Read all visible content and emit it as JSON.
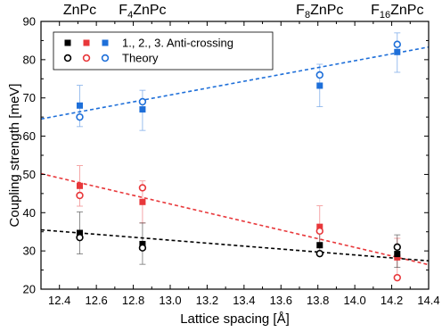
{
  "chart_data": {
    "type": "scatter",
    "xlabel": "Lattice spacing [Å]",
    "ylabel": "Coupling strength [meV]",
    "xlim": [
      12.3,
      14.4
    ],
    "ylim": [
      20,
      90
    ],
    "x_ticks": [
      "12.4",
      "12.6",
      "12.8",
      "13.0",
      "13.2",
      "13.4",
      "13.6",
      "13.8",
      "14.0",
      "14.2",
      "14.4"
    ],
    "y_ticks": [
      "20",
      "30",
      "40",
      "50",
      "60",
      "70",
      "80",
      "90"
    ],
    "top_labels": [
      {
        "base": "ZnPc",
        "sub": "",
        "tail": "",
        "x": 12.51
      },
      {
        "base": "F",
        "sub": "4",
        "tail": "ZnPc",
        "x": 12.85
      },
      {
        "base": "F",
        "sub": "8",
        "tail": "ZnPc",
        "x": 13.81
      },
      {
        "base": "F",
        "sub": "16",
        "tail": "ZnPc",
        "x": 14.23
      }
    ],
    "legend": {
      "position": "top-left",
      "entries": [
        {
          "marker": "filled-square",
          "label": "1., 2., 3. Anti-crossing"
        },
        {
          "marker": "open-circle",
          "label": "Theory"
        }
      ]
    },
    "colors": {
      "first": "#000000",
      "second": "#e8373a",
      "third": "#1e6fd9"
    },
    "series": [
      {
        "kind": "experiment",
        "color": "#1e6fd9",
        "points": [
          {
            "x": 12.51,
            "y": 68,
            "err_low": 5.5,
            "err_high": 5.3
          },
          {
            "x": 12.85,
            "y": 67,
            "err_low": 5.5,
            "err_high": 5.0
          },
          {
            "x": 13.81,
            "y": 73.2,
            "err_low": 5.5,
            "err_high": 5.6
          },
          {
            "x": 14.23,
            "y": 82,
            "err_low": 5.3,
            "err_high": 5.0
          }
        ]
      },
      {
        "kind": "theory",
        "color": "#1e6fd9",
        "points": [
          {
            "x": 12.51,
            "y": 65
          },
          {
            "x": 12.85,
            "y": 69
          },
          {
            "x": 13.81,
            "y": 76
          },
          {
            "x": 14.23,
            "y": 84
          }
        ]
      },
      {
        "kind": "experiment",
        "color": "#e8373a",
        "points": [
          {
            "x": 12.51,
            "y": 47,
            "err_low": 5.3,
            "err_high": 5.3
          },
          {
            "x": 12.85,
            "y": 42.8,
            "err_low": 5.5,
            "err_high": 5.5
          },
          {
            "x": 13.81,
            "y": 36.3,
            "err_low": 5.5,
            "err_high": 5.5
          },
          {
            "x": 14.23,
            "y": 28.3,
            "err_low": 5.0,
            "err_high": 5.0
          }
        ]
      },
      {
        "kind": "theory",
        "color": "#e8373a",
        "points": [
          {
            "x": 12.51,
            "y": 44.5
          },
          {
            "x": 12.85,
            "y": 46.5
          },
          {
            "x": 13.81,
            "y": 35.2
          },
          {
            "x": 14.23,
            "y": 23
          }
        ]
      },
      {
        "kind": "experiment",
        "color": "#000000",
        "points": [
          {
            "x": 12.51,
            "y": 34.7,
            "err_low": 5.5,
            "err_high": 5.5
          },
          {
            "x": 12.85,
            "y": 31.8,
            "err_low": 5.3,
            "err_high": 5.5
          },
          {
            "x": 13.81,
            "y": 31.5,
            "err_low": 2.5,
            "err_high": 3.5
          },
          {
            "x": 14.23,
            "y": 29.2,
            "err_low": 3.5,
            "err_high": 5.0
          }
        ]
      },
      {
        "kind": "theory",
        "color": "#000000",
        "points": [
          {
            "x": 12.51,
            "y": 33.5
          },
          {
            "x": 12.85,
            "y": 30.8
          },
          {
            "x": 13.81,
            "y": 29.3
          },
          {
            "x": 14.23,
            "y": 31
          }
        ]
      }
    ],
    "fits": [
      {
        "color": "#1e6fd9",
        "x": [
          12.3,
          14.4
        ],
        "y": [
          64.5,
          83.3
        ]
      },
      {
        "color": "#e8373a",
        "x": [
          12.3,
          14.4
        ],
        "y": [
          50.2,
          26.4
        ]
      },
      {
        "color": "#000000",
        "x": [
          12.3,
          14.4
        ],
        "y": [
          35.5,
          27.4
        ]
      }
    ]
  }
}
